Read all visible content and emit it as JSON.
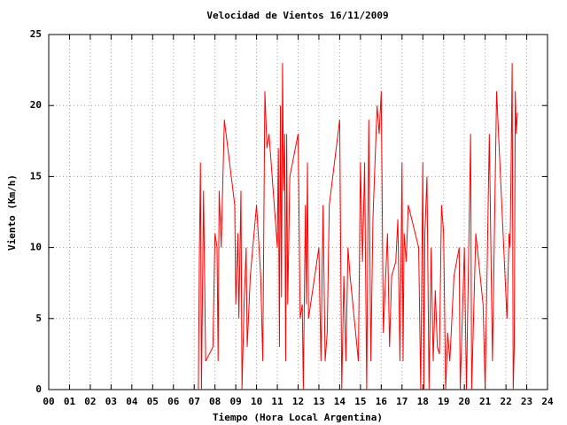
{
  "chart_data": {
    "type": "line",
    "title": "Velocidad de Vientos 16/11/2009",
    "xlabel": "Tiempo (Hora Local Argentina)",
    "ylabel": "Viento (Km/h)",
    "color": "#ff0000",
    "grid": true,
    "xlim": [
      0,
      24
    ],
    "xticks": [
      {
        "value": 0,
        "label": "00"
      },
      {
        "value": 1,
        "label": "01"
      },
      {
        "value": 2,
        "label": "02"
      },
      {
        "value": 3,
        "label": "03"
      },
      {
        "value": 4,
        "label": "04"
      },
      {
        "value": 5,
        "label": "05"
      },
      {
        "value": 6,
        "label": "06"
      },
      {
        "value": 7,
        "label": "07"
      },
      {
        "value": 8,
        "label": "08"
      },
      {
        "value": 9,
        "label": "09"
      },
      10,
      11,
      12,
      13,
      14,
      15,
      16,
      17,
      18,
      19,
      20,
      21,
      22,
      23,
      24
    ],
    "ylim": [
      0,
      25
    ],
    "yticks": [
      0,
      5,
      10,
      15,
      20,
      25
    ],
    "x": [
      7.2,
      7.25,
      7.3,
      7.35,
      7.45,
      7.55,
      7.9,
      8.0,
      8.1,
      8.15,
      8.2,
      8.3,
      8.45,
      8.95,
      9.0,
      9.1,
      9.15,
      9.25,
      9.3,
      9.4,
      9.5,
      9.55,
      9.7,
      10.0,
      10.2,
      10.3,
      10.4,
      10.5,
      10.6,
      10.9,
      11.0,
      11.05,
      11.1,
      11.15,
      11.2,
      11.25,
      11.3,
      11.35,
      11.4,
      11.45,
      11.5,
      11.6,
      12.0,
      12.1,
      12.2,
      12.25,
      12.35,
      12.4,
      12.45,
      12.5,
      13.0,
      13.1,
      13.2,
      13.3,
      13.4,
      13.5,
      14.0,
      14.1,
      14.2,
      14.3,
      14.4,
      14.5,
      14.9,
      15.0,
      15.1,
      15.2,
      15.3,
      15.4,
      15.5,
      15.6,
      15.8,
      15.9,
      16.0,
      16.1,
      16.2,
      16.3,
      16.4,
      16.5,
      16.7,
      16.8,
      16.9,
      17.0,
      17.05,
      17.1,
      17.2,
      17.3,
      17.8,
      17.9,
      18.0,
      18.05,
      18.1,
      18.2,
      18.3,
      18.4,
      18.5,
      18.6,
      18.7,
      18.8,
      18.9,
      19.0,
      19.1,
      19.2,
      19.3,
      19.5,
      19.75,
      19.8,
      20.0,
      20.1,
      20.3,
      20.35,
      20.55,
      20.9,
      21.0,
      21.2,
      21.35,
      21.55,
      22.05,
      22.15,
      22.2,
      22.25,
      22.3,
      22.35,
      22.4,
      22.45,
      22.5,
      22.55
    ],
    "values": [
      0,
      9.5,
      16,
      0,
      14,
      2,
      3,
      11,
      10,
      2,
      14,
      10,
      19,
      13,
      6,
      11,
      5,
      14,
      0,
      6,
      10,
      3,
      8,
      13,
      8,
      2,
      21,
      17,
      18,
      12,
      10,
      17,
      3,
      20,
      6.5,
      23,
      14,
      18,
      2,
      18,
      6,
      15,
      18,
      5,
      6,
      0,
      13,
      6,
      16,
      5,
      10,
      2,
      13,
      2,
      4,
      13,
      19,
      0,
      8,
      2,
      10,
      8,
      2,
      16,
      9,
      16,
      0,
      19,
      2,
      12,
      20,
      18,
      21,
      4,
      7.5,
      11,
      3,
      8,
      9,
      12,
      2,
      16,
      2,
      11,
      9,
      13,
      10,
      0,
      16,
      0,
      11,
      15,
      0,
      10,
      2,
      7,
      3,
      2.5,
      13,
      11,
      0,
      4,
      2,
      8,
      10,
      0,
      10,
      0,
      18,
      0,
      11,
      6,
      0,
      18,
      2,
      21,
      5,
      11,
      10,
      16,
      23,
      0,
      3,
      21,
      18,
      19.5
    ]
  }
}
